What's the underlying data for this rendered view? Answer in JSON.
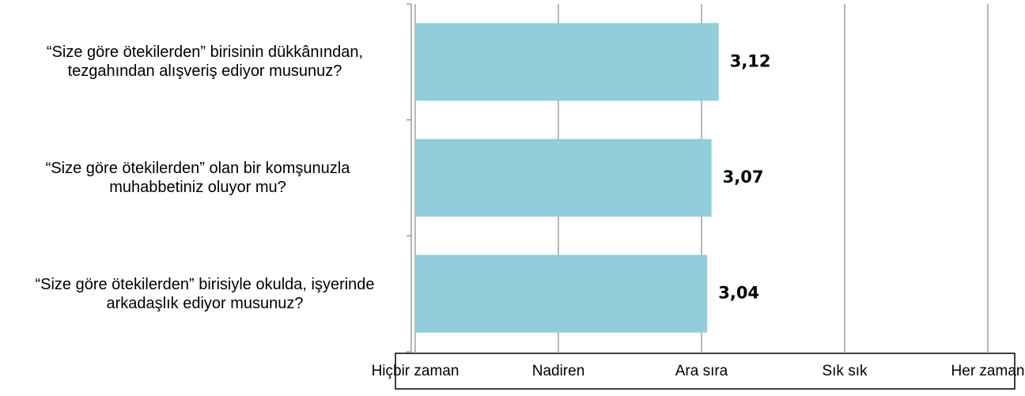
{
  "chart_data": {
    "type": "hbar",
    "categories": [
      "“Size göre ötekilerden” birisinin dükkânından, tezgahından alışveriş ediyor musunuz?",
      "“Size göre ötekilerden” olan bir komşunuzla muhabbetiniz oluyor mu?",
      "“Size göre ötekilerden” birisiyle okulda, işyerinde arkadaşlık ediyor musunuz?"
    ],
    "values": [
      3.12,
      3.07,
      3.04
    ],
    "value_labels": [
      "3,12",
      "3,07",
      "3,04"
    ],
    "color": "#92cddc",
    "xlim": [
      1,
      5
    ],
    "xticks": [
      {
        "value": 1,
        "label": "Hiçbir zaman"
      },
      {
        "value": 2,
        "label": "Nadiren"
      },
      {
        "value": 3,
        "label": "Ara sıra"
      },
      {
        "value": 4,
        "label": "Sık sık"
      },
      {
        "value": 5,
        "label": "Her zaman"
      }
    ],
    "grid": true
  }
}
